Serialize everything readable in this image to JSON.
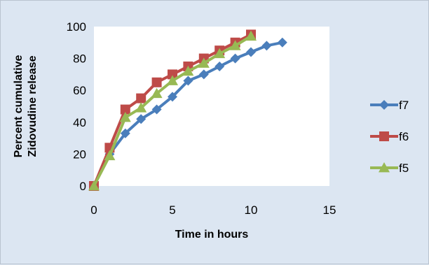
{
  "chart_data": {
    "type": "line",
    "xlabel": "Time in hours",
    "ylabel": "Percent cumulative Zidovudine release",
    "ylabel_lines": [
      "Percent cumulative",
      "Zidovudine release"
    ],
    "xlim": [
      0,
      15
    ],
    "ylim": [
      0,
      100
    ],
    "x_ticks": [
      0,
      5,
      10,
      15
    ],
    "y_ticks": [
      0,
      20,
      40,
      60,
      80,
      100
    ],
    "x_tick_labels": [
      "0",
      "5",
      "10",
      "15"
    ],
    "y_tick_labels": [
      "0",
      "20",
      "40",
      "60",
      "80",
      "100"
    ],
    "grid": false,
    "legend_position": "right",
    "series": [
      {
        "name": "f7",
        "color": "#4a7ebb",
        "marker": "diamond",
        "x": [
          0,
          1,
          2,
          3,
          4,
          5,
          6,
          7,
          8,
          9,
          10,
          11,
          12
        ],
        "y": [
          0,
          20,
          33,
          42,
          48,
          56,
          66,
          70,
          75,
          80,
          84,
          88,
          90
        ]
      },
      {
        "name": "f6",
        "color": "#be4b48",
        "marker": "square",
        "x": [
          0,
          1,
          2,
          3,
          4,
          5,
          6,
          7,
          8,
          9,
          10
        ],
        "y": [
          0,
          24,
          48,
          55,
          65,
          70,
          75,
          80,
          85,
          90,
          95
        ]
      },
      {
        "name": "f5",
        "color": "#98b954",
        "marker": "triangle",
        "x": [
          0,
          1,
          2,
          3,
          4,
          5,
          6,
          7,
          8,
          9,
          10
        ],
        "y": [
          0,
          19,
          43,
          49,
          58,
          66,
          72,
          77,
          83,
          88,
          94
        ]
      }
    ]
  }
}
